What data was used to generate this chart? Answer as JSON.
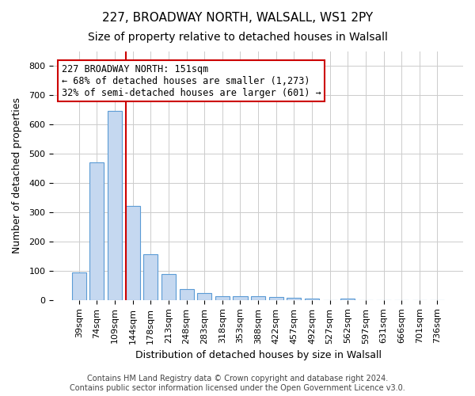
{
  "title": "227, BROADWAY NORTH, WALSALL, WS1 2PY",
  "subtitle": "Size of property relative to detached houses in Walsall",
  "xlabel": "Distribution of detached houses by size in Walsall",
  "ylabel": "Number of detached properties",
  "categories": [
    "39sqm",
    "74sqm",
    "109sqm",
    "144sqm",
    "178sqm",
    "213sqm",
    "248sqm",
    "283sqm",
    "318sqm",
    "353sqm",
    "388sqm",
    "422sqm",
    "457sqm",
    "492sqm",
    "527sqm",
    "562sqm",
    "597sqm",
    "631sqm",
    "666sqm",
    "701sqm",
    "736sqm"
  ],
  "values": [
    93,
    470,
    648,
    322,
    157,
    90,
    38,
    23,
    14,
    14,
    12,
    11,
    7,
    6,
    0,
    6,
    0,
    0,
    0,
    0,
    0
  ],
  "bar_color": "#c5d8f0",
  "bar_edge_color": "#5b9bd5",
  "vline_x": 3,
  "vline_color": "#cc0000",
  "annotation_text": "227 BROADWAY NORTH: 151sqm\n← 68% of detached houses are smaller (1,273)\n32% of semi-detached houses are larger (601) →",
  "annotation_box_color": "#ffffff",
  "annotation_box_edge": "#cc0000",
  "ylim": [
    0,
    850
  ],
  "yticks": [
    0,
    100,
    200,
    300,
    400,
    500,
    600,
    700,
    800
  ],
  "grid_color": "#cccccc",
  "background_color": "#ffffff",
  "footer": "Contains HM Land Registry data © Crown copyright and database right 2024.\nContains public sector information licensed under the Open Government Licence v3.0.",
  "title_fontsize": 11,
  "subtitle_fontsize": 10,
  "xlabel_fontsize": 9,
  "ylabel_fontsize": 9,
  "tick_fontsize": 8,
  "annotation_fontsize": 8.5,
  "footer_fontsize": 7
}
